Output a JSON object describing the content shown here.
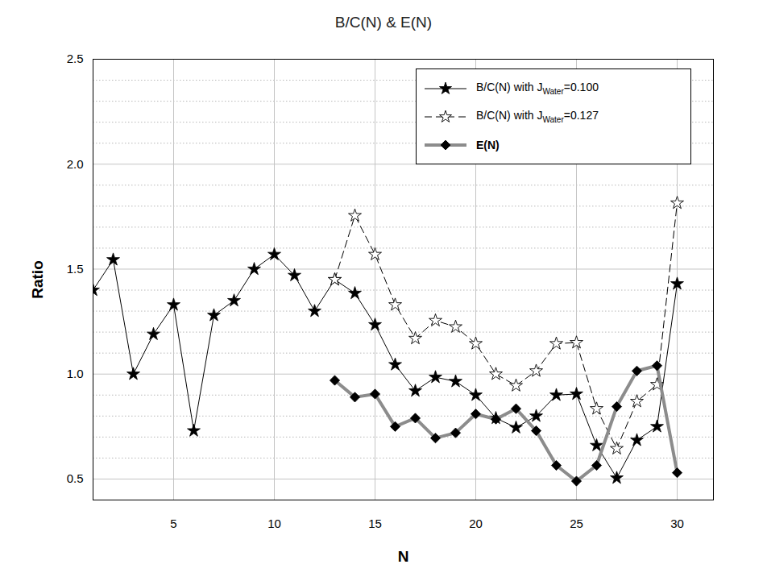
{
  "chart_data": {
    "type": "line",
    "title": "B/C(N) & E(N)",
    "x_label": "N",
    "y_label": "Ratio",
    "x": [
      1,
      2,
      3,
      4,
      5,
      6,
      7,
      8,
      9,
      10,
      11,
      12,
      13,
      14,
      15,
      16,
      17,
      18,
      19,
      20,
      21,
      22,
      23,
      24,
      25,
      26,
      27,
      28,
      29,
      30
    ],
    "series": [
      {
        "name": "B/C(N) with JWater=0.100",
        "color": "#000000",
        "marker": "star",
        "line_style": "solid",
        "values": [
          1.4,
          1.545,
          1.0,
          1.19,
          1.33,
          0.73,
          1.28,
          1.35,
          1.5,
          1.57,
          1.47,
          1.3,
          1.45,
          1.385,
          1.235,
          1.045,
          0.92,
          0.985,
          0.965,
          0.9,
          0.79,
          0.745,
          0.8,
          0.9,
          0.905,
          0.66,
          0.505,
          0.685,
          0.75,
          1.43
        ]
      },
      {
        "name": "B/C(N) with JWater=0.127",
        "color": "#000000",
        "marker": "open-star",
        "line_style": "dashed",
        "values": [
          null,
          null,
          null,
          null,
          null,
          null,
          null,
          null,
          null,
          null,
          null,
          null,
          1.45,
          1.755,
          1.57,
          1.33,
          1.17,
          1.255,
          1.225,
          1.145,
          1.0,
          0.945,
          1.015,
          1.145,
          1.15,
          0.835,
          0.645,
          0.87,
          0.95,
          1.815
        ]
      },
      {
        "name": "E(N)",
        "color": "#8c8c8c",
        "marker": "diamond",
        "line_style": "thick",
        "values": [
          null,
          null,
          null,
          null,
          null,
          null,
          null,
          null,
          null,
          null,
          null,
          null,
          0.97,
          0.89,
          0.905,
          0.75,
          0.79,
          0.695,
          0.72,
          0.81,
          0.785,
          0.835,
          0.73,
          0.565,
          0.49,
          0.565,
          0.845,
          1.015,
          1.04,
          0.53
        ]
      }
    ],
    "xlim": [
      1,
      31.8
    ],
    "xticks": [
      5,
      10,
      15,
      20,
      25,
      30
    ],
    "ylim": [
      0.4,
      2.5
    ],
    "yticks": [
      {
        "value": 0.5,
        "label": "0.5"
      },
      {
        "value": 1.0,
        "label": "1.0"
      },
      {
        "value": 1.5,
        "label": "1.5"
      },
      {
        "value": 2.0,
        "label": "2.0"
      },
      {
        "value": 2.5,
        "label": "2.5"
      }
    ],
    "grid": true,
    "legend": "top-right"
  }
}
